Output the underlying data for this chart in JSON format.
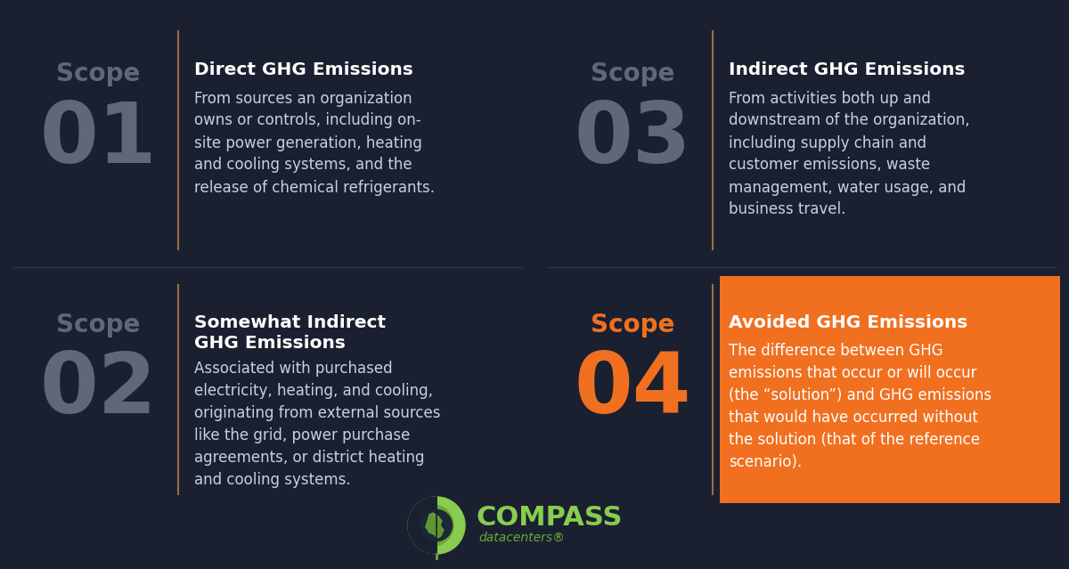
{
  "bg_color": "#1a2030",
  "divider_color": "#9a7040",
  "scope_label_color": "#606878",
  "scope_num_color": "#606878",
  "scope4_label_color": "#f07020",
  "scope4_num_color": "#f07020",
  "title_color": "#ffffff",
  "body_color": "#c8d0e0",
  "orange_box_color": "#f07020",
  "orange_title_color": "#ffffff",
  "orange_body_color": "#ffffff",
  "compass_green": "#6aaa30",
  "compass_green_light": "#88cc50",
  "scopes": [
    {
      "number": "01",
      "scope_text": "Scope",
      "title": "Direct GHG Emissions",
      "body": "From sources an organization\nowns or controls, including on-\nsite power generation, heating\nand cooling systems, and the\nrelease of chemical refrigerants.",
      "highlight": false,
      "col": 0,
      "row": 0
    },
    {
      "number": "03",
      "scope_text": "Scope",
      "title": "Indirect GHG Emissions",
      "body": "From activities both up and\ndownstream of the organization,\nincluding supply chain and\ncustomer emissions, waste\nmanagement, water usage, and\nbusiness travel.",
      "highlight": false,
      "col": 1,
      "row": 0
    },
    {
      "number": "02",
      "scope_text": "Scope",
      "title": "Somewhat Indirect\nGHG Emissions",
      "body": "Associated with purchased\nelectricity, heating, and cooling,\noriginating from external sources\nlike the grid, power purchase\nagreements, or district heating\nand cooling systems.",
      "highlight": false,
      "col": 0,
      "row": 1
    },
    {
      "number": "04",
      "scope_text": "Scope",
      "title": "Avoided GHG Emissions",
      "body": "The difference between GHG\nemissions that occur or will occur\n(the “solution”) and GHG emissions\nthat would have occurred without\nthe solution (that of the reference\nscenario).",
      "highlight": true,
      "col": 1,
      "row": 1
    }
  ],
  "figsize": [
    12.0,
    6.39
  ],
  "dpi": 100
}
